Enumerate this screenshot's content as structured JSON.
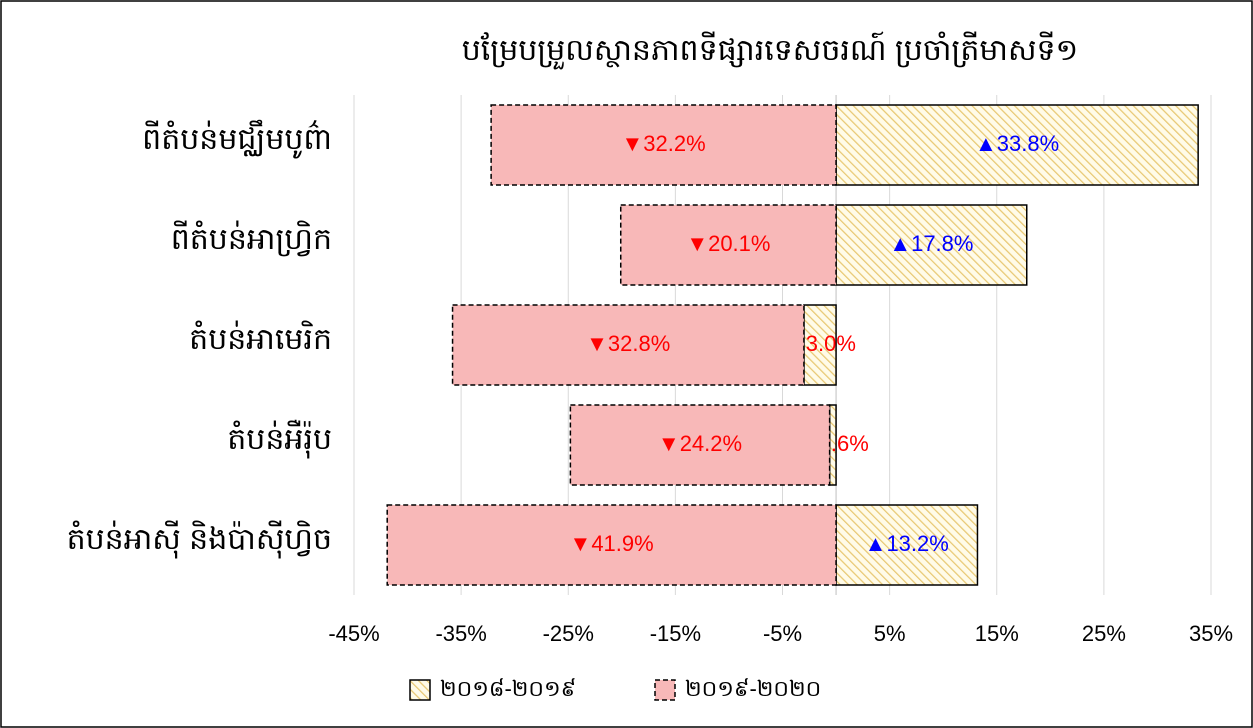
{
  "chart_data": {
    "type": "bar",
    "orientation": "horizontal",
    "stacked": true,
    "title": "បម្រែបម្រួលស្ថានភាពទីផ្សារទេសចរណ៍ ប្រចាំត្រីមាសទី១",
    "categories": [
      "ពីតំបន់មជ្ឈឹមបូព៌ា",
      "ពីតំបន់អាហ្វ្រិក",
      "តំបន់អាមេរិក",
      "តំបន់អឺរ៉ុប",
      "តំបន់អាស៊ី និងប៉ាស៊ីហ្វិច"
    ],
    "series": [
      {
        "name": "២០១៨-២០១៩",
        "color": "#e8c872",
        "values": [
          33.8,
          17.8,
          -3.0,
          -0.6,
          13.2
        ],
        "value_labels": [
          "▲33.8%",
          "▲17.8%",
          "▼3.0%",
          "▼0.6%",
          "▲13.2%"
        ]
      },
      {
        "name": "២០១៩-២០២០",
        "color": "#f8b8b8",
        "values": [
          -32.2,
          -20.1,
          -32.8,
          -24.2,
          -41.9
        ],
        "value_labels": [
          "▼32.2%",
          "▼20.1%",
          "▼32.8%",
          "▼24.2%",
          "▼41.9%"
        ]
      }
    ],
    "xlim": [
      -45,
      35
    ],
    "xticks": [
      {
        "value": -45,
        "label": "-45%"
      },
      {
        "value": -35,
        "label": "-35%"
      },
      {
        "value": -25,
        "label": "-25%"
      },
      {
        "value": -15,
        "label": "-15%"
      },
      {
        "value": -5,
        "label": "-5%"
      },
      {
        "value": 5,
        "label": "5%"
      },
      {
        "value": 15,
        "label": "15%"
      },
      {
        "value": 25,
        "label": "25%"
      },
      {
        "value": 35,
        "label": "35%"
      }
    ],
    "grid": true,
    "legend": "bottom"
  }
}
